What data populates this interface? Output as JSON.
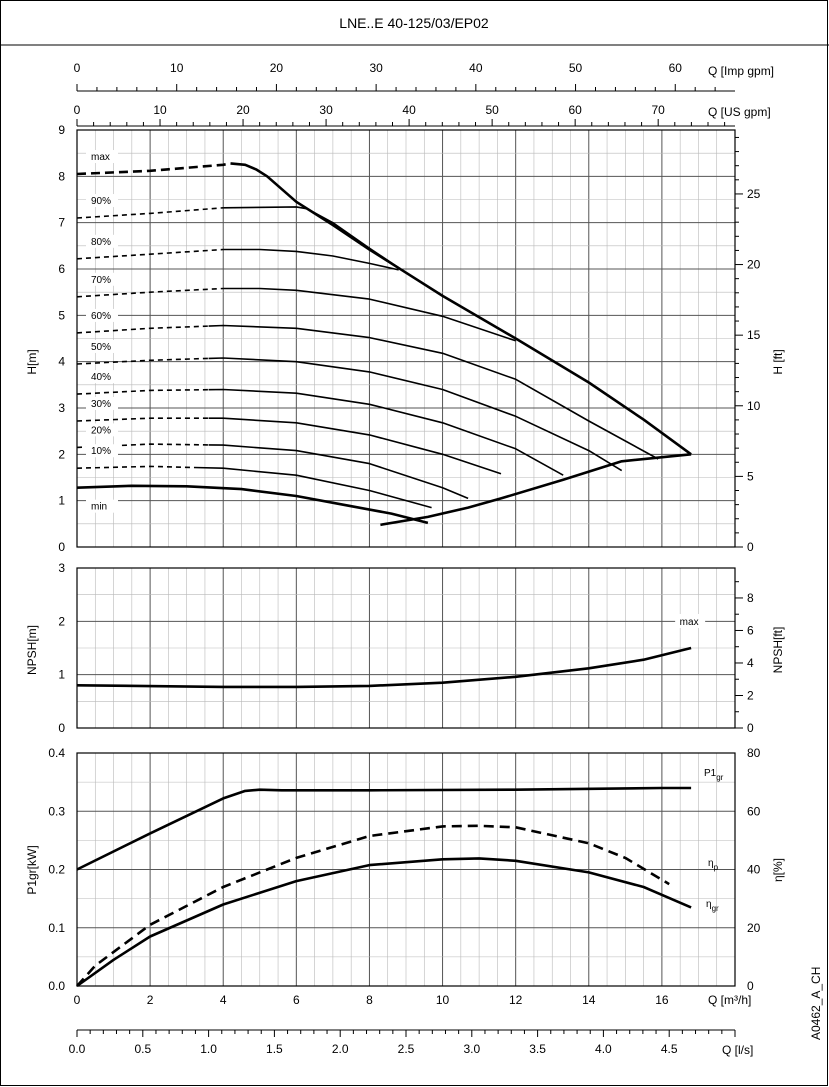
{
  "title": "LNE..E 40-125/03/EP02",
  "code": "A0462_A_CH",
  "units": {
    "q_imp": "Q [Imp gpm]",
    "q_us": "Q [US gpm]",
    "q_m3h": "Q [m³/h]",
    "q_ls": "Q [l/s]",
    "h_m": "H[m]",
    "h_ft": "H [ft]",
    "npsh_m": "NPSH[m]",
    "npsh_ft": "NPSH[ft]",
    "p1gr_kw": "P1gr[kW]",
    "eta_pct": "η[%]"
  },
  "axes": {
    "imp_gpm_ticks": [
      "0",
      "10",
      "20",
      "30",
      "40",
      "50",
      "60"
    ],
    "us_gpm_ticks": [
      "0",
      "10",
      "20",
      "30",
      "40",
      "50",
      "60",
      "70"
    ],
    "m3h_ticks": [
      "0",
      "2",
      "4",
      "6",
      "8",
      "10",
      "12",
      "14",
      "16"
    ],
    "ls_ticks": [
      "0.0",
      "0.5",
      "1.0",
      "1.5",
      "2.0",
      "2.5",
      "3.0",
      "3.5",
      "4.0",
      "4.5"
    ],
    "h_m_ticks": [
      "0",
      "1",
      "2",
      "3",
      "4",
      "5",
      "6",
      "7",
      "8",
      "9"
    ],
    "h_ft_ticks": [
      "0",
      "5",
      "10",
      "15",
      "20",
      "25"
    ],
    "npsh_m_ticks": [
      "0",
      "1",
      "2",
      "3"
    ],
    "npsh_ft_ticks": [
      "0",
      "2",
      "4",
      "6",
      "8"
    ],
    "p_ticks": [
      "0.0",
      "0.1",
      "0.2",
      "0.3",
      "0.4"
    ],
    "eta_ticks": [
      "0",
      "20",
      "40",
      "60",
      "80"
    ]
  },
  "chart_data": [
    {
      "type": "line",
      "panel": "head",
      "xlabel": "Q [m³/h]",
      "ylabel": "H[m]",
      "y2label": "H [ft]",
      "xlim": [
        0,
        18
      ],
      "ylim": [
        0,
        9
      ],
      "grid": true,
      "series": [
        {
          "name": "max",
          "values": [
            [
              0,
              8.05
            ],
            [
              2,
              8.12
            ],
            [
              4,
              8.25
            ],
            [
              4.2,
              8.28
            ],
            [
              4.6,
              8.25
            ],
            [
              4.9,
              8.15
            ],
            [
              5.2,
              8.0
            ],
            [
              6,
              7.45
            ],
            [
              7,
              6.95
            ],
            [
              8,
              6.42
            ],
            [
              9,
              5.92
            ],
            [
              10,
              5.42
            ],
            [
              12,
              4.5
            ],
            [
              14,
              3.55
            ],
            [
              15.5,
              2.75
            ],
            [
              16.8,
              2.0
            ]
          ]
        },
        {
          "name": "90%",
          "values": [
            [
              0,
              7.1
            ],
            [
              2,
              7.2
            ],
            [
              4,
              7.32
            ],
            [
              6,
              7.34
            ],
            [
              6.3,
              7.3
            ],
            [
              7,
              7.0
            ],
            [
              8,
              6.45
            ],
            [
              9,
              5.92
            ],
            [
              10,
              5.42
            ],
            [
              12,
              4.5
            ],
            [
              14,
              3.55
            ],
            [
              15.5,
              2.75
            ],
            [
              16.8,
              2.0
            ]
          ]
        },
        {
          "name": "80%",
          "values": [
            [
              0,
              6.22
            ],
            [
              2,
              6.32
            ],
            [
              4,
              6.42
            ],
            [
              5,
              6.42
            ],
            [
              6,
              6.38
            ],
            [
              7,
              6.28
            ],
            [
              8,
              6.12
            ],
            [
              8.8,
              5.98
            ]
          ]
        },
        {
          "name": "70%",
          "values": [
            [
              0,
              5.4
            ],
            [
              2,
              5.5
            ],
            [
              4,
              5.58
            ],
            [
              5,
              5.58
            ],
            [
              6,
              5.54
            ],
            [
              8,
              5.35
            ],
            [
              10,
              4.98
            ],
            [
              12,
              4.45
            ]
          ]
        },
        {
          "name": "60%",
          "values": [
            [
              0,
              4.62
            ],
            [
              2,
              4.72
            ],
            [
              4,
              4.78
            ],
            [
              6,
              4.72
            ],
            [
              8,
              4.52
            ],
            [
              10,
              4.18
            ],
            [
              12,
              3.62
            ],
            [
              14,
              2.72
            ],
            [
              15.9,
              1.9
            ]
          ]
        },
        {
          "name": "50%",
          "values": [
            [
              0,
              3.95
            ],
            [
              2,
              4.03
            ],
            [
              4,
              4.08
            ],
            [
              6,
              4.0
            ],
            [
              8,
              3.78
            ],
            [
              10,
              3.4
            ],
            [
              12,
              2.82
            ],
            [
              14,
              2.08
            ],
            [
              14.9,
              1.65
            ]
          ]
        },
        {
          "name": "40%",
          "values": [
            [
              0,
              3.3
            ],
            [
              2,
              3.38
            ],
            [
              4,
              3.4
            ],
            [
              6,
              3.32
            ],
            [
              8,
              3.08
            ],
            [
              10,
              2.68
            ],
            [
              12,
              2.12
            ],
            [
              13.3,
              1.55
            ]
          ]
        },
        {
          "name": "30%",
          "values": [
            [
              0,
              2.72
            ],
            [
              2,
              2.78
            ],
            [
              4,
              2.78
            ],
            [
              6,
              2.68
            ],
            [
              8,
              2.42
            ],
            [
              10,
              2.0
            ],
            [
              11.6,
              1.58
            ]
          ]
        },
        {
          "name": "20%",
          "values": [
            [
              0,
              2.15
            ],
            [
              2,
              2.22
            ],
            [
              4,
              2.2
            ],
            [
              6,
              2.08
            ],
            [
              8,
              1.8
            ],
            [
              10,
              1.28
            ],
            [
              10.7,
              1.05
            ]
          ]
        },
        {
          "name": "10%",
          "values": [
            [
              0,
              1.7
            ],
            [
              2,
              1.74
            ],
            [
              4,
              1.7
            ],
            [
              6,
              1.55
            ],
            [
              8,
              1.22
            ],
            [
              9.7,
              0.85
            ]
          ]
        },
        {
          "name": "min",
          "values": [
            [
              0,
              1.28
            ],
            [
              1.5,
              1.32
            ],
            [
              3,
              1.31
            ],
            [
              4.5,
              1.25
            ],
            [
              6,
              1.1
            ],
            [
              7.5,
              0.88
            ],
            [
              8.6,
              0.72
            ],
            [
              9.1,
              0.62
            ],
            [
              9.6,
              0.52
            ]
          ]
        },
        {
          "name": "",
          "values": [
            [
              8.3,
              0.48
            ],
            [
              9.6,
              0.65
            ],
            [
              10.7,
              0.85
            ],
            [
              11.6,
              1.05
            ],
            [
              13.3,
              1.45
            ],
            [
              14.9,
              1.85
            ],
            [
              16.8,
              2.0
            ]
          ]
        }
      ]
    },
    {
      "type": "line",
      "panel": "npsh",
      "ylabel": "NPSH[m]",
      "y2label": "NPSH[ft]",
      "xlim": [
        0,
        18
      ],
      "ylim": [
        0,
        3
      ],
      "grid": true,
      "series": [
        {
          "name": "max",
          "values": [
            [
              0,
              0.8
            ],
            [
              4,
              0.77
            ],
            [
              6,
              0.77
            ],
            [
              8,
              0.79
            ],
            [
              10,
              0.85
            ],
            [
              12,
              0.96
            ],
            [
              14,
              1.12
            ],
            [
              15.5,
              1.28
            ],
            [
              16.8,
              1.5
            ]
          ]
        }
      ]
    },
    {
      "type": "line",
      "panel": "power-efficiency",
      "xlabel": "Q [m³/h]",
      "ylabel": "P1gr[kW]",
      "y2label": "η[%]",
      "xlim": [
        0,
        18
      ],
      "ylim": [
        0,
        0.4
      ],
      "y2lim": [
        0,
        80
      ],
      "grid": true,
      "series": [
        {
          "name": "P1gr",
          "axis": "left",
          "values": [
            [
              0,
              0.2
            ],
            [
              2,
              0.262
            ],
            [
              4,
              0.322
            ],
            [
              4.6,
              0.335
            ],
            [
              5,
              0.337
            ],
            [
              5.6,
              0.336
            ],
            [
              8,
              0.336
            ],
            [
              12,
              0.337
            ],
            [
              16,
              0.34
            ],
            [
              16.8,
              0.34
            ]
          ]
        },
        {
          "name": "ηp",
          "axis": "right",
          "values": [
            [
              0,
              0
            ],
            [
              0.5,
              7
            ],
            [
              2,
              21
            ],
            [
              4,
              34
            ],
            [
              6,
              44
            ],
            [
              8,
              51.5
            ],
            [
              10,
              54.8
            ],
            [
              11,
              55
            ],
            [
              12,
              54.5
            ],
            [
              14,
              49
            ],
            [
              15,
              44
            ],
            [
              16.2,
              35
            ]
          ]
        },
        {
          "name": "ηgr",
          "axis": "right",
          "values": [
            [
              0,
              0
            ],
            [
              1,
              9
            ],
            [
              2,
              17
            ],
            [
              4,
              28
            ],
            [
              6,
              36
            ],
            [
              8,
              41.5
            ],
            [
              10,
              43.5
            ],
            [
              11,
              43.8
            ],
            [
              12,
              43
            ],
            [
              14,
              39
            ],
            [
              15.5,
              34
            ],
            [
              16.8,
              27
            ]
          ]
        }
      ]
    }
  ]
}
